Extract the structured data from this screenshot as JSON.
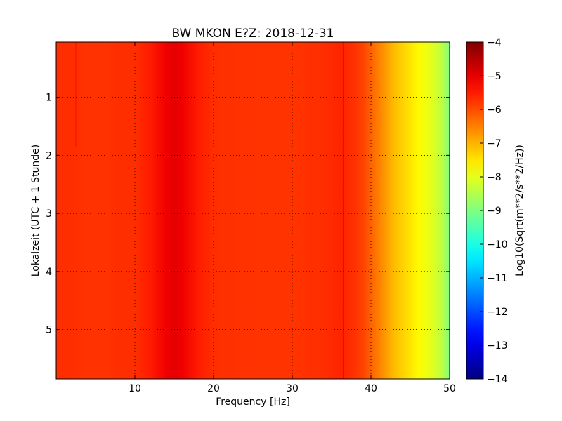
{
  "chart_data": {
    "type": "heatmap",
    "title": "BW MKON E?Z: 2018-12-31",
    "xlabel": "Frequency [Hz]",
    "ylabel": "Lokalzeit (UTC + 1 Stunde)",
    "xlim": [
      0,
      50
    ],
    "ylim": [
      5.85,
      0.05
    ],
    "y_axis_inverted": true,
    "x_ticks": [
      10,
      20,
      30,
      40,
      50
    ],
    "x_tick_labels": [
      "10",
      "20",
      "30",
      "40",
      "50"
    ],
    "y_ticks": [
      1,
      2,
      3,
      4,
      5
    ],
    "y_tick_labels": [
      "1",
      "2",
      "3",
      "4",
      "5"
    ],
    "grid": true,
    "grid_style": "dotted",
    "colormap": "jet",
    "colorbar": {
      "label": "Log10(Sqrt(m**2/s**2/Hz))",
      "vmin": -14,
      "vmax": -4,
      "ticks": [
        -4,
        -5,
        -6,
        -7,
        -8,
        -9,
        -10,
        -11,
        -12,
        -13,
        -14
      ],
      "tick_labels": [
        "−4",
        "−5",
        "−6",
        "−7",
        "−8",
        "−9",
        "−10",
        "−11",
        "−12",
        "−13",
        "−14"
      ]
    },
    "mean_spectrum_frequencies_hz": [
      0,
      2,
      4,
      6,
      8,
      10,
      12,
      14,
      15,
      16,
      18,
      20,
      25,
      30,
      34,
      36,
      37,
      38,
      39,
      40,
      41,
      42,
      43,
      44,
      45,
      46,
      47,
      48,
      49,
      50
    ],
    "mean_spectrum_values": [
      -5.7,
      -5.7,
      -5.75,
      -5.75,
      -5.7,
      -5.7,
      -5.5,
      -5.1,
      -5.0,
      -5.1,
      -5.5,
      -5.7,
      -5.75,
      -5.75,
      -5.7,
      -5.6,
      -5.65,
      -5.75,
      -5.9,
      -6.2,
      -6.5,
      -6.8,
      -7.1,
      -7.3,
      -7.5,
      -7.7,
      -7.9,
      -8.1,
      -8.4,
      -9.0
    ],
    "features": [
      {
        "frequency_hz": 2.5,
        "value": -5.5,
        "time_range": [
          0.05,
          1.85
        ]
      },
      {
        "frequency_hz": 36.5,
        "value": -5.3,
        "time_range": [
          0.05,
          5.85
        ]
      }
    ]
  }
}
